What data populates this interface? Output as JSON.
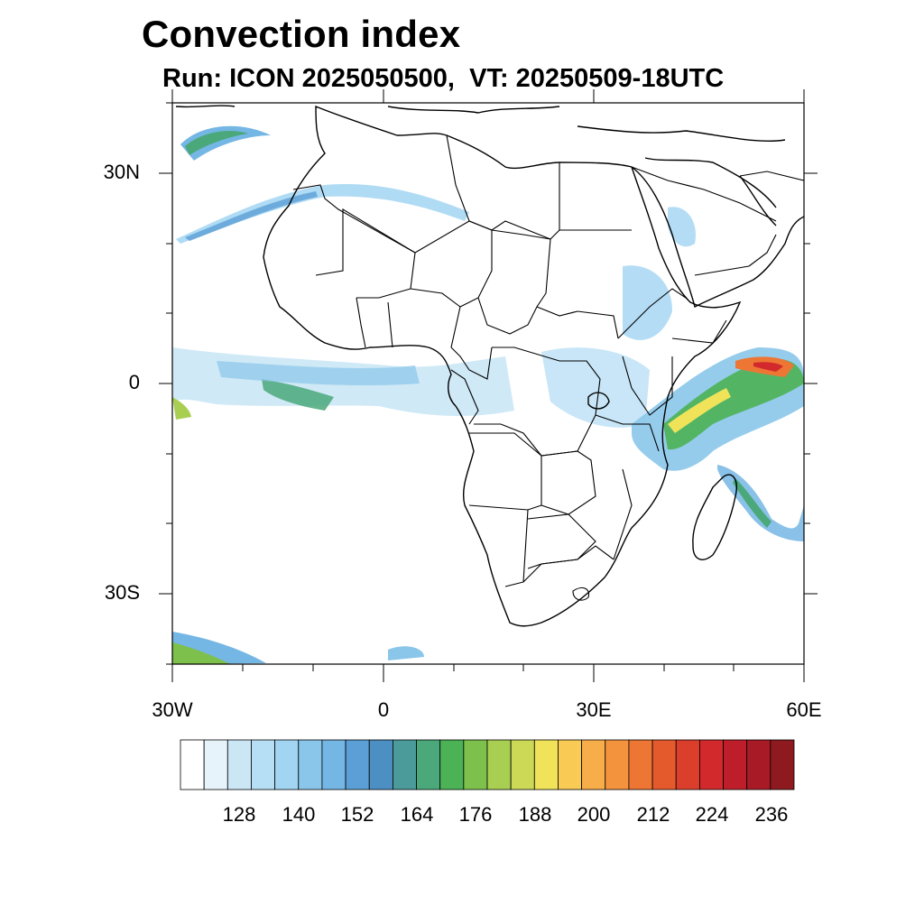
{
  "title": "Convection index",
  "subtitle": "Run: ICON 2025050500,  VT: 20250509-18UTC",
  "map": {
    "extent": {
      "lon_min": -30,
      "lon_max": 60,
      "lat_min": -40,
      "lat_max": 40
    },
    "lat_labels": [
      "30N",
      "0",
      "30S"
    ],
    "lon_labels": [
      "30W",
      "0",
      "30E",
      "60E"
    ]
  },
  "colorbar": {
    "colors": [
      "#ffffff",
      "#e6f3fb",
      "#cbe7f6",
      "#b6def4",
      "#a1d5f2",
      "#8ac6ea",
      "#74b6e4",
      "#5b9fd6",
      "#4c8fc2",
      "#4a9b9a",
      "#4aa87a",
      "#4bb255",
      "#7ec04c",
      "#a8cf52",
      "#cbd957",
      "#f0e35a",
      "#f9cb54",
      "#f7ae4a",
      "#f4933e",
      "#ee7634",
      "#e55a2d",
      "#dc3e2c",
      "#d22a2c",
      "#bd1e2a",
      "#a81b26",
      "#8e1a1f"
    ],
    "labels": [
      "128",
      "140",
      "152",
      "164",
      "176",
      "188",
      "200",
      "212",
      "224",
      "236"
    ]
  }
}
